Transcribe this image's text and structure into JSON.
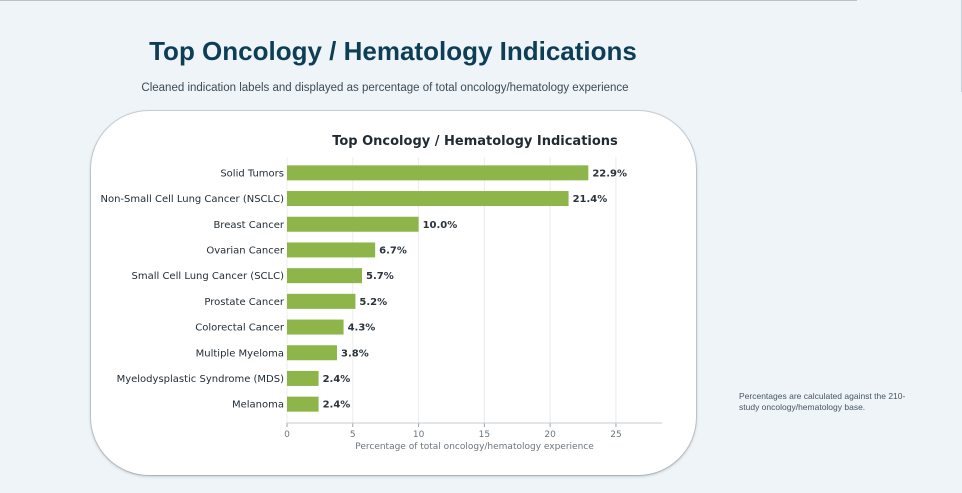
{
  "page": {
    "title": "Top Oncology / Hematology Indications",
    "subtitle": "Cleaned indication labels and displayed as percentage of total oncology/hematology experience",
    "note": "Percentages are calculated against the 210-study oncology/hematology base."
  },
  "colors": {
    "bar": "#8db549",
    "title": "#0d3e56"
  },
  "chart_data": {
    "type": "bar",
    "orientation": "horizontal",
    "title": "Top Oncology / Hematology Indications",
    "xlabel": "Percentage of total oncology/hematology experience",
    "ylabel": "",
    "categories": [
      "Solid Tumors",
      "Non-Small Cell Lung Cancer (NSCLC)",
      "Breast Cancer",
      "Ovarian Cancer",
      "Small Cell Lung Cancer (SCLC)",
      "Prostate Cancer",
      "Colorectal Cancer",
      "Multiple Myeloma",
      "Myelodysplastic Syndrome (MDS)",
      "Melanoma"
    ],
    "values": [
      22.9,
      21.4,
      10.0,
      6.7,
      5.7,
      5.2,
      4.3,
      3.8,
      2.4,
      2.4
    ],
    "value_labels": [
      "22.9%",
      "21.4%",
      "10.0%",
      "6.7%",
      "5.7%",
      "5.2%",
      "4.3%",
      "3.8%",
      "2.4%",
      "2.4%"
    ],
    "xlim": [
      0,
      28.5
    ],
    "xticks": [
      0,
      5,
      10,
      15,
      20,
      25
    ],
    "grid": true
  }
}
